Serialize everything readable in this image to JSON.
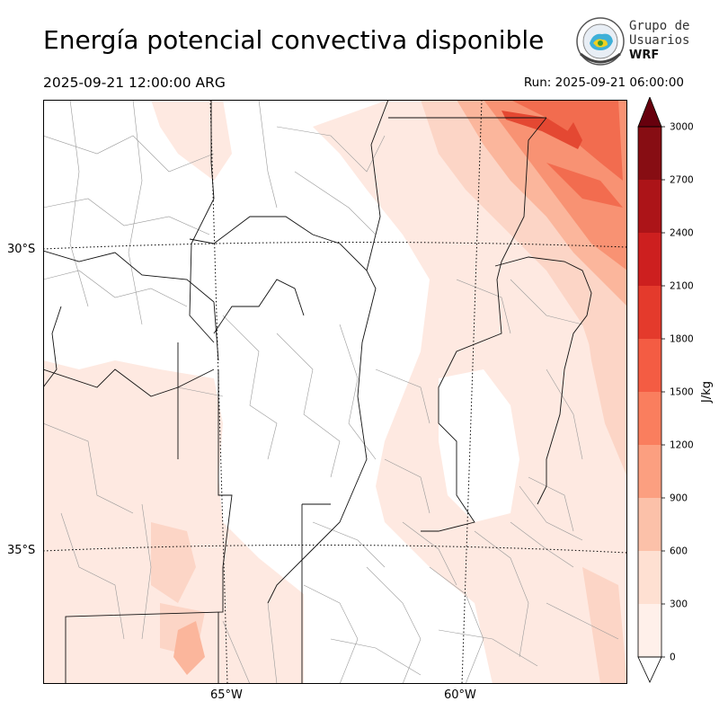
{
  "header": {
    "title": "Energía potencial convectiva disponible",
    "valid_time": "2025-09-21 12:00:00 ARG",
    "run_time": "Run: 2025-09-21 06:00:00"
  },
  "logo": {
    "line1": "Grupo de",
    "line2": "Usuarios",
    "line3": "WRF"
  },
  "map": {
    "lat_labels": [
      "30°S",
      "35°S"
    ],
    "lon_labels": [
      "65°W",
      "60°W"
    ],
    "field_colors": [
      "#fee9e1",
      "#fcd5c6",
      "#fbb69c",
      "#f89273",
      "#f26c4f",
      "#e44832"
    ]
  },
  "colorbar": {
    "label": "J/kg",
    "ticks": [
      0,
      300,
      600,
      900,
      1200,
      1500,
      1800,
      2100,
      2400,
      2700,
      3000
    ],
    "colors": [
      "#fff0ea",
      "#fee0d2",
      "#fcc1a9",
      "#fc9f80",
      "#fa7e5e",
      "#f45c43",
      "#e43a2c",
      "#cd1f1f",
      "#ac1418",
      "#870d13",
      "#6c0a10"
    ],
    "over_color": "#67000d"
  }
}
